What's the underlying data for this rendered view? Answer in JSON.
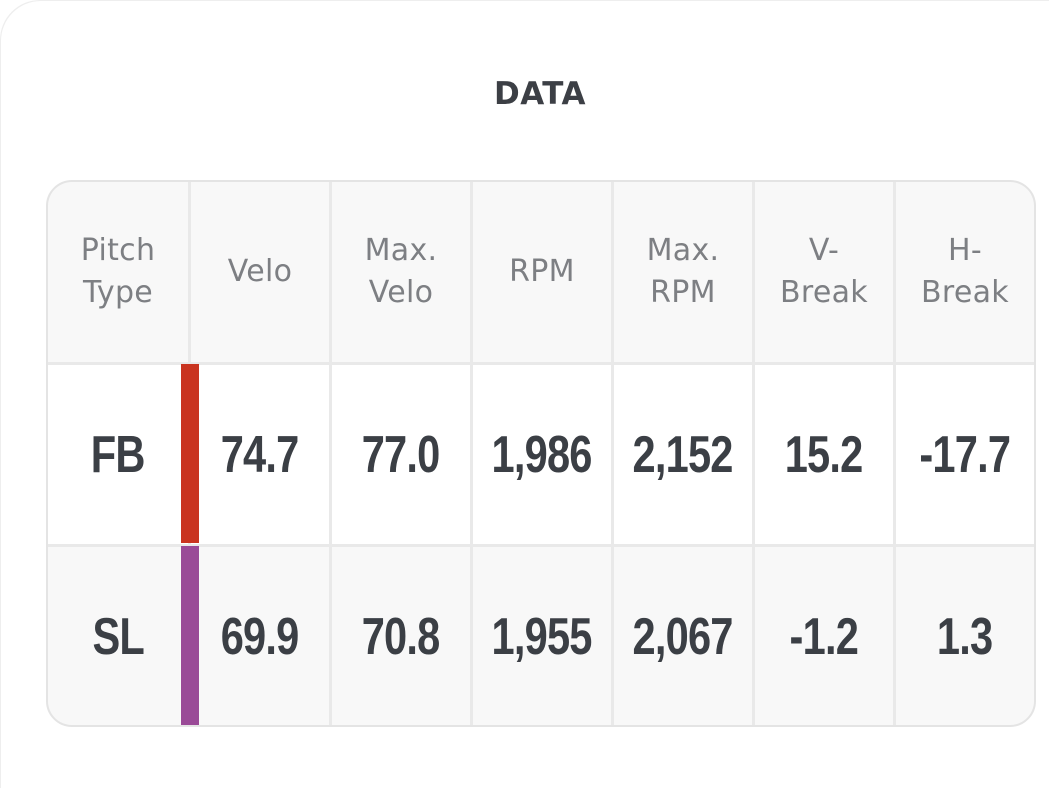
{
  "title": "DATA",
  "columns": [
    "Pitch\nType",
    "Velo",
    "Max.\nVelo",
    "RPM",
    "Max.\nRPM",
    "V-\nBreak",
    "H-\nBreak"
  ],
  "rows": [
    {
      "pitch": "FB",
      "color": "#c93420",
      "values": [
        "74.7",
        "77.0",
        "1,986",
        "2,152",
        "15.2",
        "-17.7"
      ]
    },
    {
      "pitch": "SL",
      "color": "#9a4a97",
      "values": [
        "69.9",
        "70.8",
        "1,955",
        "2,067",
        "-1.2",
        "1.3"
      ]
    }
  ]
}
